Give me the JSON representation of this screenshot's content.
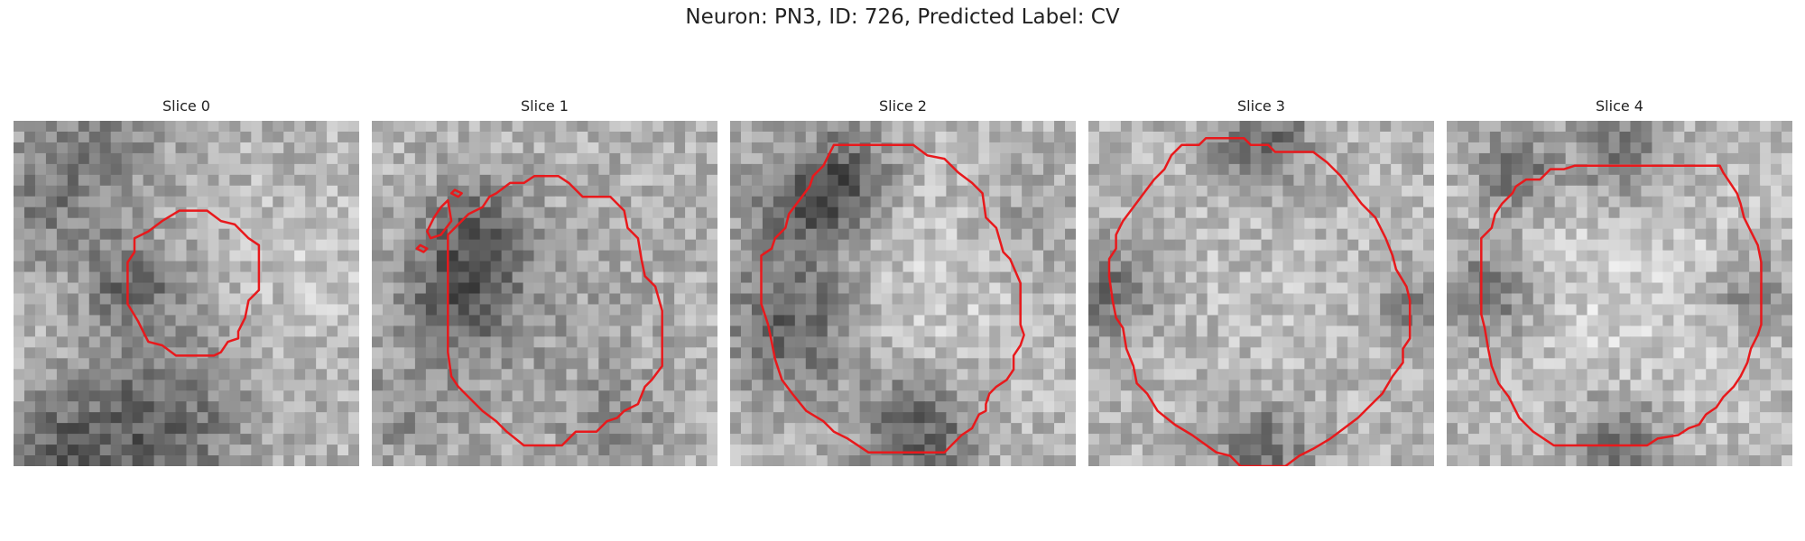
{
  "figure": {
    "title": "Neuron: PN3, ID: 726, Predicted Label: CV",
    "contour_color": "#e8191c"
  },
  "panels": [
    {
      "title": "Slice 0",
      "seed": 11,
      "blobs": [
        [
          0.1,
          0.22,
          0.14,
          55
        ],
        [
          0.3,
          0.05,
          0.12,
          40
        ],
        [
          0.35,
          0.48,
          0.1,
          70
        ],
        [
          0.4,
          0.9,
          0.18,
          85
        ],
        [
          0.12,
          0.95,
          0.1,
          60
        ],
        [
          0.88,
          0.4,
          0.15,
          -20
        ]
      ],
      "contours": [
        [
          [
            0.48,
            0.26
          ],
          [
            0.56,
            0.26
          ],
          [
            0.6,
            0.29
          ],
          [
            0.64,
            0.3
          ],
          [
            0.68,
            0.34
          ],
          [
            0.71,
            0.36
          ],
          [
            0.71,
            0.49
          ],
          [
            0.68,
            0.52
          ],
          [
            0.67,
            0.57
          ],
          [
            0.65,
            0.61
          ],
          [
            0.65,
            0.63
          ],
          [
            0.62,
            0.64
          ],
          [
            0.6,
            0.67
          ],
          [
            0.58,
            0.68
          ],
          [
            0.47,
            0.68
          ],
          [
            0.43,
            0.65
          ],
          [
            0.39,
            0.64
          ],
          [
            0.38,
            0.62
          ],
          [
            0.36,
            0.58
          ],
          [
            0.33,
            0.53
          ],
          [
            0.33,
            0.41
          ],
          [
            0.35,
            0.38
          ],
          [
            0.35,
            0.34
          ],
          [
            0.39,
            0.32
          ],
          [
            0.43,
            0.29
          ]
        ]
      ]
    },
    {
      "title": "Slice 1",
      "seed": 23,
      "blobs": [
        [
          0.25,
          0.5,
          0.12,
          80
        ],
        [
          0.3,
          0.3,
          0.1,
          55
        ],
        [
          0.7,
          0.9,
          0.1,
          40
        ],
        [
          0.5,
          0.55,
          0.25,
          20
        ],
        [
          0.1,
          0.85,
          0.12,
          35
        ]
      ],
      "contours": [
        [
          [
            0.52,
            0.16
          ],
          [
            0.54,
            0.16
          ],
          [
            0.57,
            0.18
          ],
          [
            0.61,
            0.22
          ],
          [
            0.69,
            0.22
          ],
          [
            0.73,
            0.26
          ],
          [
            0.74,
            0.31
          ],
          [
            0.77,
            0.34
          ],
          [
            0.78,
            0.4
          ],
          [
            0.79,
            0.45
          ],
          [
            0.82,
            0.48
          ],
          [
            0.84,
            0.55
          ],
          [
            0.84,
            0.71
          ],
          [
            0.81,
            0.75
          ],
          [
            0.79,
            0.77
          ],
          [
            0.77,
            0.82
          ],
          [
            0.73,
            0.84
          ],
          [
            0.71,
            0.86
          ],
          [
            0.68,
            0.87
          ],
          [
            0.65,
            0.9
          ],
          [
            0.59,
            0.9
          ],
          [
            0.55,
            0.94
          ],
          [
            0.44,
            0.94
          ],
          [
            0.39,
            0.9
          ],
          [
            0.36,
            0.87
          ],
          [
            0.32,
            0.84
          ],
          [
            0.28,
            0.8
          ],
          [
            0.25,
            0.77
          ],
          [
            0.23,
            0.74
          ],
          [
            0.22,
            0.67
          ],
          [
            0.22,
            0.33
          ],
          [
            0.25,
            0.3
          ],
          [
            0.28,
            0.27
          ],
          [
            0.32,
            0.25
          ],
          [
            0.34,
            0.22
          ],
          [
            0.36,
            0.21
          ],
          [
            0.4,
            0.18
          ],
          [
            0.44,
            0.18
          ],
          [
            0.47,
            0.16
          ]
        ],
        [
          [
            0.18,
            0.28
          ],
          [
            0.2,
            0.25
          ],
          [
            0.22,
            0.23
          ],
          [
            0.23,
            0.29
          ],
          [
            0.2,
            0.33
          ],
          [
            0.17,
            0.34
          ],
          [
            0.16,
            0.32
          ]
        ],
        [
          [
            0.24,
            0.2
          ],
          [
            0.26,
            0.21
          ],
          [
            0.25,
            0.22
          ],
          [
            0.23,
            0.21
          ]
        ],
        [
          [
            0.14,
            0.36
          ],
          [
            0.16,
            0.37
          ],
          [
            0.15,
            0.38
          ],
          [
            0.13,
            0.37
          ]
        ]
      ]
    },
    {
      "title": "Slice 2",
      "seed": 37,
      "blobs": [
        [
          0.22,
          0.25,
          0.12,
          80
        ],
        [
          0.18,
          0.6,
          0.14,
          85
        ],
        [
          0.55,
          0.9,
          0.12,
          90
        ],
        [
          0.85,
          0.3,
          0.12,
          30
        ],
        [
          0.6,
          0.5,
          0.25,
          -25
        ],
        [
          0.35,
          0.15,
          0.1,
          60
        ]
      ],
      "contours": [
        [
          [
            0.3,
            0.07
          ],
          [
            0.53,
            0.07
          ],
          [
            0.57,
            0.1
          ],
          [
            0.62,
            0.11
          ],
          [
            0.66,
            0.15
          ],
          [
            0.7,
            0.18
          ],
          [
            0.73,
            0.21
          ],
          [
            0.74,
            0.28
          ],
          [
            0.77,
            0.31
          ],
          [
            0.79,
            0.38
          ],
          [
            0.81,
            0.4
          ],
          [
            0.84,
            0.47
          ],
          [
            0.84,
            0.59
          ],
          [
            0.85,
            0.62
          ],
          [
            0.84,
            0.65
          ],
          [
            0.82,
            0.68
          ],
          [
            0.82,
            0.72
          ],
          [
            0.8,
            0.75
          ],
          [
            0.77,
            0.77
          ],
          [
            0.75,
            0.79
          ],
          [
            0.74,
            0.82
          ],
          [
            0.74,
            0.84
          ],
          [
            0.72,
            0.85
          ],
          [
            0.7,
            0.89
          ],
          [
            0.67,
            0.91
          ],
          [
            0.64,
            0.94
          ],
          [
            0.62,
            0.96
          ],
          [
            0.4,
            0.96
          ],
          [
            0.34,
            0.92
          ],
          [
            0.3,
            0.9
          ],
          [
            0.27,
            0.87
          ],
          [
            0.22,
            0.84
          ],
          [
            0.18,
            0.79
          ],
          [
            0.15,
            0.75
          ],
          [
            0.13,
            0.69
          ],
          [
            0.12,
            0.64
          ],
          [
            0.11,
            0.59
          ],
          [
            0.09,
            0.53
          ],
          [
            0.09,
            0.39
          ],
          [
            0.12,
            0.37
          ],
          [
            0.13,
            0.34
          ],
          [
            0.16,
            0.31
          ],
          [
            0.17,
            0.27
          ],
          [
            0.2,
            0.23
          ],
          [
            0.23,
            0.19
          ],
          [
            0.24,
            0.16
          ],
          [
            0.27,
            0.13
          ],
          [
            0.28,
            0.11
          ]
        ]
      ]
    },
    {
      "title": "Slice 3",
      "seed": 41,
      "blobs": [
        [
          0.5,
          0.05,
          0.1,
          75
        ],
        [
          0.05,
          0.5,
          0.1,
          70
        ],
        [
          0.5,
          0.95,
          0.1,
          70
        ],
        [
          0.95,
          0.55,
          0.08,
          55
        ],
        [
          0.5,
          0.5,
          0.28,
          -10
        ]
      ],
      "contours": [
        [
          [
            0.27,
            0.07
          ],
          [
            0.32,
            0.07
          ],
          [
            0.34,
            0.05
          ],
          [
            0.45,
            0.05
          ],
          [
            0.47,
            0.07
          ],
          [
            0.52,
            0.07
          ],
          [
            0.54,
            0.09
          ],
          [
            0.65,
            0.09
          ],
          [
            0.69,
            0.12
          ],
          [
            0.73,
            0.16
          ],
          [
            0.76,
            0.2
          ],
          [
            0.79,
            0.24
          ],
          [
            0.83,
            0.28
          ],
          [
            0.86,
            0.34
          ],
          [
            0.88,
            0.39
          ],
          [
            0.89,
            0.43
          ],
          [
            0.92,
            0.48
          ],
          [
            0.93,
            0.52
          ],
          [
            0.93,
            0.63
          ],
          [
            0.91,
            0.66
          ],
          [
            0.91,
            0.7
          ],
          [
            0.88,
            0.74
          ],
          [
            0.85,
            0.79
          ],
          [
            0.81,
            0.83
          ],
          [
            0.78,
            0.86
          ],
          [
            0.74,
            0.89
          ],
          [
            0.7,
            0.92
          ],
          [
            0.65,
            0.95
          ],
          [
            0.61,
            0.97
          ],
          [
            0.57,
            1.0
          ],
          [
            0.44,
            1.0
          ],
          [
            0.41,
            0.97
          ],
          [
            0.37,
            0.96
          ],
          [
            0.3,
            0.91
          ],
          [
            0.25,
            0.88
          ],
          [
            0.2,
            0.84
          ],
          [
            0.17,
            0.79
          ],
          [
            0.14,
            0.76
          ],
          [
            0.13,
            0.71
          ],
          [
            0.11,
            0.66
          ],
          [
            0.1,
            0.6
          ],
          [
            0.08,
            0.57
          ],
          [
            0.07,
            0.52
          ],
          [
            0.06,
            0.45
          ],
          [
            0.06,
            0.4
          ],
          [
            0.08,
            0.37
          ],
          [
            0.08,
            0.33
          ],
          [
            0.1,
            0.29
          ],
          [
            0.13,
            0.25
          ],
          [
            0.16,
            0.21
          ],
          [
            0.19,
            0.17
          ],
          [
            0.22,
            0.14
          ],
          [
            0.24,
            0.1
          ]
        ]
      ]
    },
    {
      "title": "Slice 4",
      "seed": 53,
      "blobs": [
        [
          0.5,
          0.1,
          0.1,
          70
        ],
        [
          0.12,
          0.5,
          0.1,
          70
        ],
        [
          0.5,
          0.93,
          0.1,
          75
        ],
        [
          0.88,
          0.5,
          0.08,
          55
        ],
        [
          0.2,
          0.15,
          0.08,
          80
        ],
        [
          0.5,
          0.5,
          0.3,
          -30
        ]
      ],
      "contours": [
        [
          [
            0.42,
            0.13
          ],
          [
            0.79,
            0.13
          ],
          [
            0.8,
            0.15
          ],
          [
            0.82,
            0.18
          ],
          [
            0.84,
            0.21
          ],
          [
            0.85,
            0.24
          ],
          [
            0.86,
            0.28
          ],
          [
            0.88,
            0.32
          ],
          [
            0.9,
            0.36
          ],
          [
            0.91,
            0.41
          ],
          [
            0.91,
            0.59
          ],
          [
            0.9,
            0.62
          ],
          [
            0.88,
            0.66
          ],
          [
            0.87,
            0.7
          ],
          [
            0.85,
            0.74
          ],
          [
            0.83,
            0.77
          ],
          [
            0.8,
            0.8
          ],
          [
            0.78,
            0.83
          ],
          [
            0.75,
            0.85
          ],
          [
            0.73,
            0.88
          ],
          [
            0.7,
            0.89
          ],
          [
            0.67,
            0.91
          ],
          [
            0.61,
            0.92
          ],
          [
            0.58,
            0.94
          ],
          [
            0.31,
            0.94
          ],
          [
            0.25,
            0.9
          ],
          [
            0.21,
            0.86
          ],
          [
            0.18,
            0.8
          ],
          [
            0.15,
            0.76
          ],
          [
            0.13,
            0.71
          ],
          [
            0.12,
            0.66
          ],
          [
            0.11,
            0.6
          ],
          [
            0.1,
            0.56
          ],
          [
            0.1,
            0.44
          ],
          [
            0.1,
            0.34
          ],
          [
            0.13,
            0.31
          ],
          [
            0.14,
            0.27
          ],
          [
            0.16,
            0.24
          ],
          [
            0.19,
            0.21
          ],
          [
            0.2,
            0.19
          ],
          [
            0.23,
            0.17
          ],
          [
            0.27,
            0.17
          ],
          [
            0.3,
            0.14
          ],
          [
            0.34,
            0.14
          ],
          [
            0.37,
            0.13
          ]
        ]
      ]
    }
  ]
}
